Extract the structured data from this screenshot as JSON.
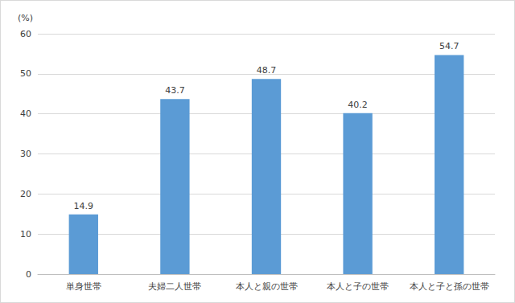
{
  "chart_data": {
    "type": "bar",
    "ylabel": "(%)",
    "categories": [
      "単身世帯",
      "夫婦二人世帯",
      "本人と親の世帯",
      "本人と子の世帯",
      "本人と子と孫の世帯"
    ],
    "values": [
      14.9,
      43.7,
      48.7,
      40.2,
      54.7
    ],
    "color": "#5b9bd5",
    "ylim": [
      0,
      60
    ],
    "yticks": [
      0,
      10,
      20,
      30,
      40,
      50,
      60
    ],
    "grid": true,
    "data_labels": true
  }
}
